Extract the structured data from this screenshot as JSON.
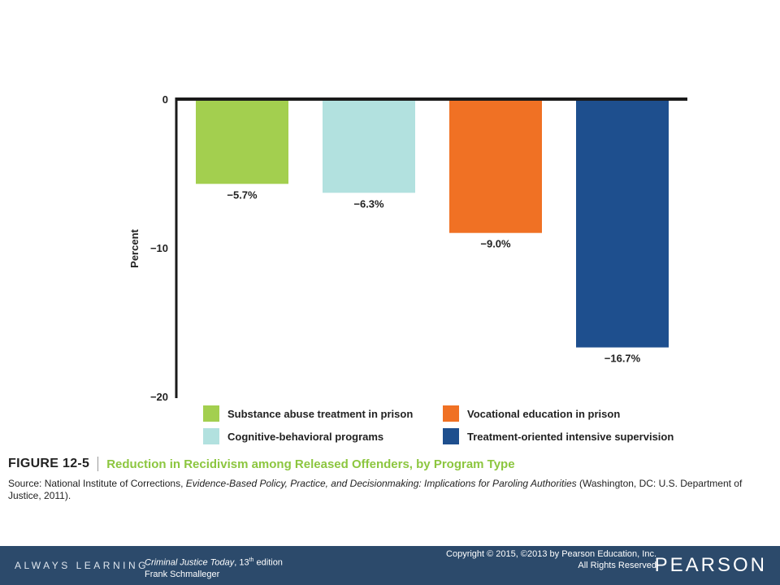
{
  "chart_data": {
    "type": "bar",
    "categories": [
      "Substance abuse treatment in prison",
      "Cognitive-behavioral programs",
      "Vocational education in prison",
      "Treatment-oriented intensive supervision"
    ],
    "values": [
      -5.7,
      -6.3,
      -9.0,
      -16.7
    ],
    "value_labels": [
      "−5.7%",
      "−6.3%",
      "−9.0%",
      "−16.7%"
    ],
    "colors": [
      "#a3cf4f",
      "#b2e1df",
      "#f07124",
      "#1e4f8e"
    ],
    "ylabel": "Percent",
    "xlabel": "",
    "ylim": [
      -20,
      0
    ],
    "yticks": [
      0,
      -10,
      -20
    ],
    "ytick_labels": [
      "0",
      "−10",
      "−20"
    ],
    "legend_position": "bottom",
    "grid": false
  },
  "figure": {
    "number": "FIGURE 12-5",
    "title": "Reduction in Recidivism among Released Offenders, by Program Type",
    "source_prefix": "Source: National Institute of Corrections, ",
    "source_italic": "Evidence-Based Policy, Practice, and Decisionmaking: Implications for Paroling Authorities",
    "source_suffix": " (Washington, DC: U.S. Department of Justice, 2011)."
  },
  "footer": {
    "always_learning": "ALWAYS LEARNING",
    "book_title": "Criminal Justice Today",
    "book_edition_prefix": ", 13",
    "book_edition_sup": "th",
    "book_edition_suffix": " edition",
    "author": "Frank Schmalleger",
    "copyright_line1": "Copyright © 2015, ©2013 by Pearson Education, Inc.",
    "copyright_line2": "All Rights Reserved",
    "brand": "PEARSON",
    "bar_color": "#2c4a6b"
  }
}
